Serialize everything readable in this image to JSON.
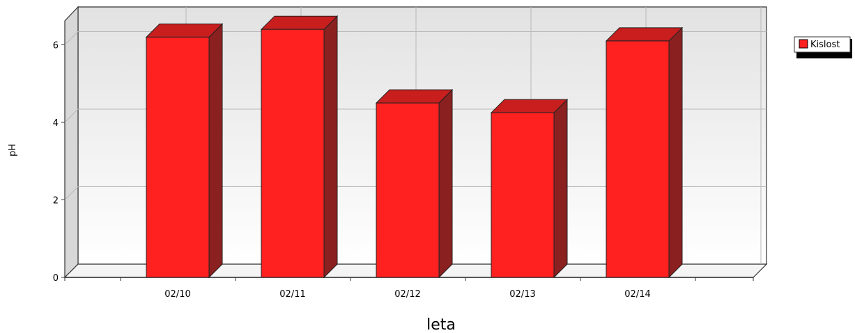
{
  "chart_data": {
    "type": "bar",
    "categories": [
      "02/10",
      "02/11",
      "02/12",
      "02/13",
      "02/14"
    ],
    "series": [
      {
        "name": "Kislost",
        "values": [
          6.2,
          6.4,
          4.5,
          4.25,
          6.1
        ],
        "color": "#ff2020"
      }
    ],
    "xlabel": "leta",
    "ylabel": "pH",
    "ylim": [
      0,
      6.5
    ],
    "yticks": [
      0,
      2,
      4,
      6
    ],
    "grid": true,
    "legend_position": "top-right",
    "three_d": true
  }
}
